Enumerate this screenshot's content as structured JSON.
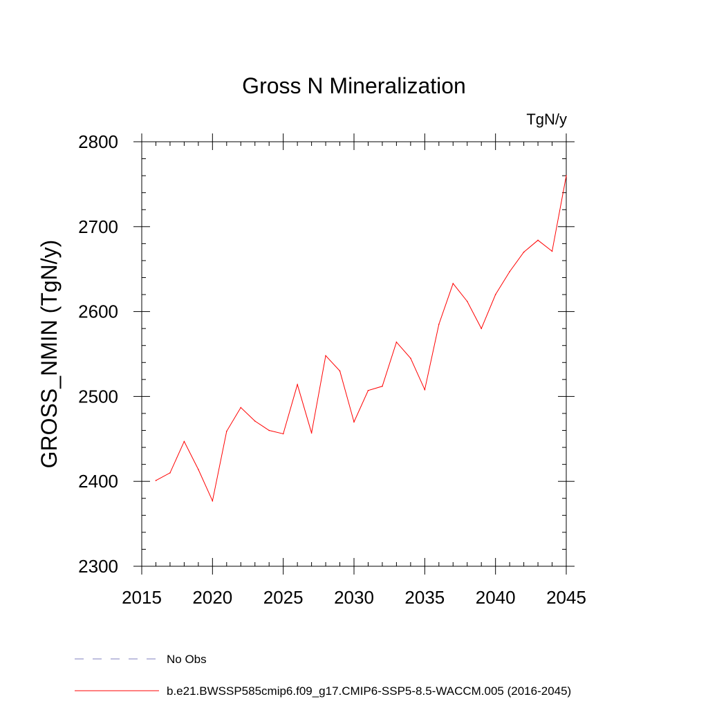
{
  "chart_data": {
    "type": "line",
    "title": "Gross N Mineralization",
    "units": "TgN/y",
    "ylabel": "GROSS_NMIN  (TgN/y)",
    "xlabel": "",
    "xlim": [
      2015,
      2045
    ],
    "ylim": [
      2300,
      2800
    ],
    "xticks": [
      2015,
      2020,
      2025,
      2030,
      2035,
      2040,
      2045
    ],
    "yticks": [
      2300,
      2400,
      2500,
      2600,
      2700,
      2800
    ],
    "grid": false,
    "legend_position": "bottom",
    "series": [
      {
        "name": "b.e21.BWSSP585cmip6.f09_g17.CMIP6-SSP5-8.5-WACCM.005 (2016-2045)",
        "color": "#ff0000",
        "style": "solid",
        "x": [
          2016,
          2017,
          2018,
          2019,
          2020,
          2021,
          2022,
          2023,
          2024,
          2025,
          2026,
          2027,
          2028,
          2029,
          2030,
          2031,
          2032,
          2033,
          2034,
          2035,
          2036,
          2037,
          2038,
          2039,
          2040,
          2041,
          2042,
          2043,
          2044,
          2045
        ],
        "y": [
          2401,
          2410,
          2447,
          2414,
          2377,
          2459,
          2487,
          2471,
          2460,
          2456,
          2514,
          2457,
          2548,
          2530,
          2470,
          2507,
          2512,
          2564,
          2545,
          2508,
          2585,
          2633,
          2612,
          2580,
          2620,
          2647,
          2670,
          2684,
          2671,
          2760
        ]
      }
    ],
    "legend": [
      {
        "label": "No Obs",
        "color": "#7f7fbf",
        "style": "dashed"
      },
      {
        "label": "b.e21.BWSSP585cmip6.f09_g17.CMIP6-SSP5-8.5-WACCM.005 (2016-2045)",
        "color": "#ff0000",
        "style": "solid"
      }
    ]
  }
}
